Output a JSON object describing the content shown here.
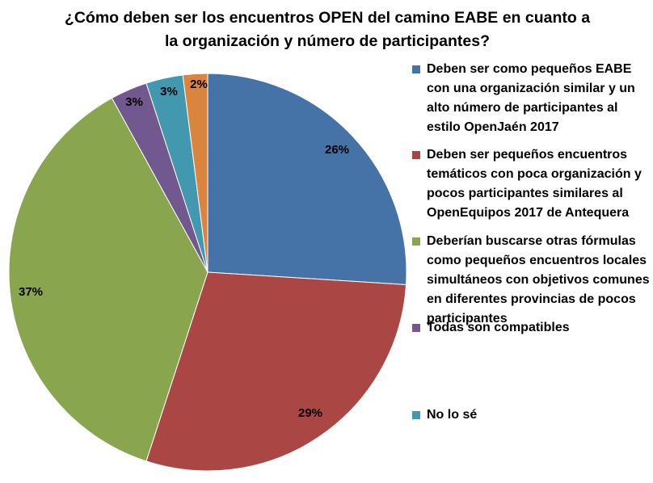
{
  "chart_data": {
    "type": "pie",
    "title": "¿Cómo deben ser los encuentros OPEN del camino EABE en cuanto a la organización y número de participantes?",
    "title_lines": [
      "¿Cómo deben ser los encuentros OPEN del camino EABE en cuanto a",
      "la organización y número de participantes?"
    ],
    "start_angle_deg": 0,
    "direction": "clockwise",
    "legend_position": "right",
    "slices": [
      {
        "label": "Deben ser como pequeños EABE con una organización similar y un alto número de participantes al estilo OpenJaén 2017",
        "value": 26,
        "data_label": "26%",
        "color": "#4572A7"
      },
      {
        "label": "Deben ser pequeños encuentros temáticos con poca organización y pocos participantes similares al OpenEquipos 2017 de Antequera",
        "value": 29,
        "data_label": "29%",
        "color": "#AA4643"
      },
      {
        "label": "Deberían buscarse otras fórmulas como pequeños encuentros locales simultáneos con objetivos comunes en diferentes provincias de pocos participantes",
        "value": 37,
        "data_label": "37%",
        "color": "#89A54E"
      },
      {
        "label": "Todas son compatibles",
        "value": 3,
        "data_label": "3%",
        "color": "#71588F"
      },
      {
        "label": "No lo sé",
        "value": 3,
        "data_label": "3%",
        "color": "#4198AF"
      },
      {
        "label": "",
        "value": 2,
        "data_label": "2%",
        "color": "#DB843D"
      }
    ]
  }
}
